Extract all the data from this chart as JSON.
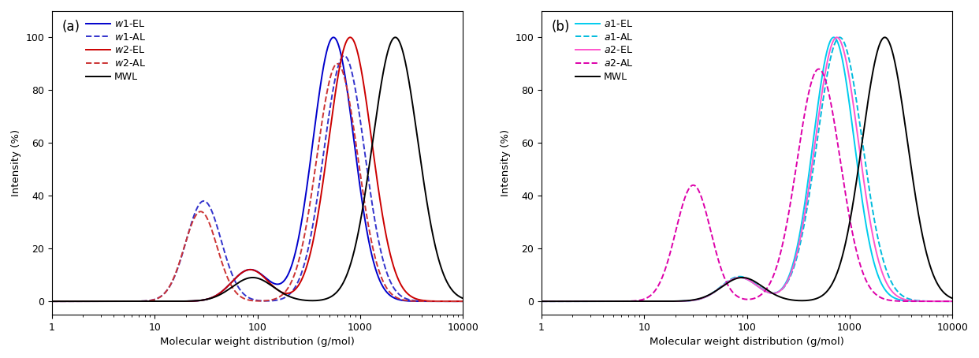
{
  "title_a": "(a)",
  "title_b": "(b)",
  "xlabel": "Molecular weight distribution (g/mol)",
  "ylabel": "Intensity (%)",
  "xlim": [
    1,
    10000
  ],
  "ylim": [
    -5,
    110
  ],
  "yticks": [
    0,
    20,
    40,
    60,
    80,
    100
  ],
  "legend_a": [
    "$w$1-EL",
    "$w$1-AL",
    "$w$2-EL",
    "$w$2-AL",
    "MWL"
  ],
  "legend_b": [
    "$a$1-EL",
    "$a$1-AL",
    "$a$2-EL",
    "$a$2-AL",
    "MWL"
  ],
  "colors_a": {
    "w1_EL": "#0000cc",
    "w1_AL": "#3333cc",
    "w2_EL": "#cc0000",
    "w2_AL": "#cc3333",
    "MWL": "#000000"
  },
  "colors_b": {
    "a1_EL": "#00ccee",
    "a1_AL": "#00bbdd",
    "a2_EL": "#ff55cc",
    "a2_AL": "#dd00aa",
    "MWL": "#000000"
  },
  "curve_params_a": {
    "mwl": {
      "peaks": [
        2200,
        90
      ],
      "sigmas": [
        0.22,
        0.2
      ],
      "scales": [
        100,
        9
      ]
    },
    "w1_el": {
      "peaks": [
        550,
        85
      ],
      "sigmas": [
        0.2,
        0.18
      ],
      "scales": [
        100,
        12
      ]
    },
    "w1_al": {
      "peaks": [
        30,
        700
      ],
      "sigmas": [
        0.17,
        0.2
      ],
      "scales": [
        38,
        93
      ]
    },
    "w2_el": {
      "peaks": [
        800,
        85
      ],
      "sigmas": [
        0.21,
        0.18
      ],
      "scales": [
        100,
        12
      ]
    },
    "w2_al": {
      "peaks": [
        28,
        600
      ],
      "sigmas": [
        0.16,
        0.2
      ],
      "scales": [
        34,
        90
      ]
    }
  },
  "curve_params_b": {
    "mwl": {
      "peaks": [
        2200,
        90
      ],
      "sigmas": [
        0.22,
        0.2
      ],
      "scales": [
        100,
        9
      ]
    },
    "a1_el": {
      "peaks": [
        700,
        85
      ],
      "sigmas": [
        0.2,
        0.18
      ],
      "scales": [
        100,
        9
      ]
    },
    "a1_al": {
      "peaks": [
        800,
        85
      ],
      "sigmas": [
        0.22,
        0.18
      ],
      "scales": [
        96,
        9
      ]
    },
    "a2_el": {
      "peaks": [
        750,
        85
      ],
      "sigmas": [
        0.21,
        0.18
      ],
      "scales": [
        100,
        9
      ]
    },
    "a2_al": {
      "peaks": [
        30,
        500
      ],
      "sigmas": [
        0.17,
        0.21
      ],
      "scales": [
        44,
        88
      ]
    }
  }
}
